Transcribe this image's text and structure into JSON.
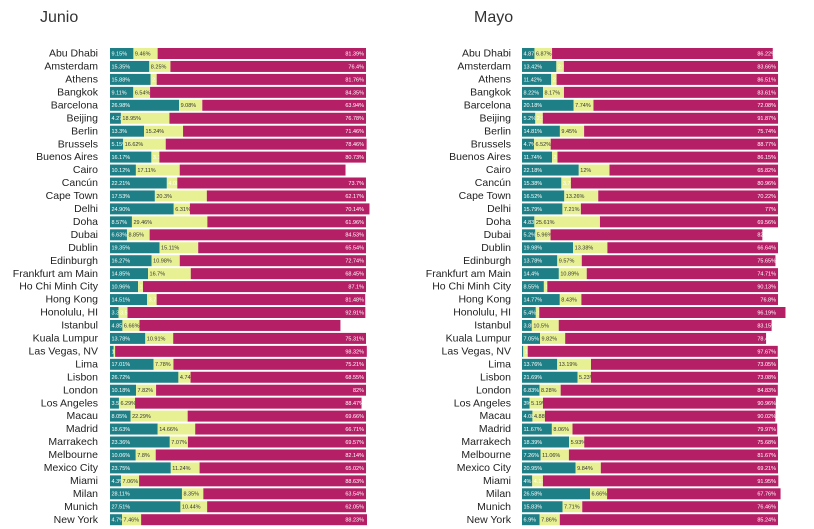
{
  "colors": {
    "teal": "#1f7f86",
    "yellow": "#e8f094",
    "magenta": "#b51f66"
  },
  "chart_data": [
    {
      "type": "bar",
      "orientation": "horizontal",
      "stacked": true,
      "title": "Junio",
      "categories": [
        "Abu Dhabi",
        "Amsterdam",
        "Athens",
        "Bangkok",
        "Barcelona",
        "Beijing",
        "Berlin",
        "Brussels",
        "Buenos Aires",
        "Cairo",
        "Cancún",
        "Cape Town",
        "Delhi",
        "Doha",
        "Dubai",
        "Dublin",
        "Edinburgh",
        "Frankfurt am Main",
        "Ho Chi Minh City",
        "Hong Kong",
        "Honolulu, HI",
        "Istanbul",
        "Kuala Lumpur",
        "Las Vegas, NV",
        "Lima",
        "Lisbon",
        "London",
        "Los Angeles",
        "Macau",
        "Madrid",
        "Marrakech",
        "Melbourne",
        "Mexico City",
        "Miami",
        "Milan",
        "Munich",
        "New York"
      ],
      "series": [
        {
          "values": [
            9.15,
            15.35,
            15.88,
            9.11,
            26.98,
            4.27,
            13.3,
            5.15,
            16.17,
            10.12,
            22.21,
            17.53,
            24.9,
            8.57,
            6.63,
            19.35,
            16.27,
            14.85,
            10.96,
            14.51,
            3.32,
            4.85,
            13.78,
            1.44,
            17.01,
            26.72,
            10.18,
            3.5,
            8.05,
            18.63,
            23.36,
            10.06,
            23.75,
            4.3,
            28.11,
            27.51,
            4.7
          ],
          "labels": [
            "9.15%",
            "15.35%",
            "15.88%",
            "9.11%",
            "26.98%",
            "4.27%",
            "13.3%",
            "5.15%",
            "16.17%",
            "10.12%",
            "22.21%",
            "17.53%",
            "24.90%",
            "8.57%",
            "6.63%",
            "19.35%",
            "16.27%",
            "14.85%",
            "10.96%",
            "14.51%",
            "3.32%",
            "4.85%",
            "13.78%",
            "1.44%",
            "17.01%",
            "26.72%",
            "10.18%",
            "3.5%",
            "8.05%",
            "18.63%",
            "23.36%",
            "10.06%",
            "23.75%",
            "4.3%",
            "28.11%",
            "27.51%",
            "4.7%"
          ]
        },
        {
          "values": [
            9.46,
            8.25,
            2.36,
            6.54,
            9.08,
            18.95,
            15.24,
            16.62,
            3.11,
            17.11,
            4.08,
            20.3,
            6.31,
            29.46,
            8.85,
            15.11,
            10.98,
            16.7,
            1.94,
            3.7,
            3.52,
            6.66,
            10.91,
            0.56,
            7.78,
            4.74,
            7.82,
            6.29,
            22.29,
            14.66,
            7.07,
            7.8,
            11.24,
            7.06,
            8.35,
            10.44,
            7.46
          ],
          "labels": [
            "9.46%",
            "8.25%",
            "2.36%",
            "6.54%",
            "9.08%",
            "18.95%",
            "15.24%",
            "16.62%",
            "3.11%",
            "17.11%",
            "4.08%",
            "20.3%",
            "6.31%",
            "29.46%",
            "8.85%",
            "15.11%",
            "10.98%",
            "16.7%",
            "1.94%",
            "3.7%",
            "3.52%",
            "6.66%",
            "10.91%",
            "0.56%",
            "7.78%",
            "4.74%",
            "7.82%",
            "6.29%",
            "22.29%",
            "14.66%",
            "7.07%",
            "7.8%",
            "11.24%",
            "7.06%",
            "8.35%",
            "10.44%",
            "7.46%"
          ]
        },
        {
          "values": [
            81.39,
            76.4,
            81.76,
            84.35,
            63.94,
            76.78,
            71.46,
            78.46,
            80.73,
            64.77,
            73.7,
            62.17,
            70.14,
            61.96,
            84.53,
            65.54,
            72.74,
            68.45,
            87.1,
            81.48,
            92.91,
            78.5,
            75.31,
            98.32,
            75.21,
            68.55,
            82,
            88.47,
            69.66,
            66.71,
            69.57,
            82.14,
            65.02,
            88.63,
            63.54,
            62.05,
            88.23
          ],
          "labels": [
            "81.39%",
            "76.4%",
            "81.76%",
            "84.35%",
            "63.94%",
            "76.78%",
            "71.46%",
            "78.46%",
            "80.73%",
            "64.77%",
            "73.7%",
            "62.17%",
            "70.14%",
            "61.96%",
            "84.53%",
            "65.54%",
            "72.74%",
            "68.45%",
            "87.1%",
            "81.48%",
            "92.91%",
            "78.5%",
            "75.31%",
            "98.32%",
            "75.21%",
            "68.55%",
            "82%",
            "88.47%",
            "69.66%",
            "66.71%",
            "69.57%",
            "82.14%",
            "65.02%",
            "88.63%",
            "63.54%",
            "62.05%",
            "88.23%"
          ]
        }
      ],
      "xlim": [
        0,
        100
      ]
    },
    {
      "type": "bar",
      "orientation": "horizontal",
      "stacked": true,
      "title": "Mayo",
      "categories": [
        "Abu Dhabi",
        "Amsterdam",
        "Athens",
        "Bangkok",
        "Barcelona",
        "Beijing",
        "Berlin",
        "Brussels",
        "Buenos Aires",
        "Cairo",
        "Cancún",
        "Cape Town",
        "Delhi",
        "Doha",
        "Dubai",
        "Dublin",
        "Edinburgh",
        "Frankfurt am Main",
        "Ho Chi Minh City",
        "Hong Kong",
        "Honolulu, HI",
        "Istanbul",
        "Kuala Lumpur",
        "Las Vegas, NV",
        "Lima",
        "Lisbon",
        "London",
        "Los Angeles",
        "Macau",
        "Madrid",
        "Marrakech",
        "Melbourne",
        "Mexico City",
        "Miami",
        "Milan",
        "Munich",
        "New York"
      ],
      "series": [
        {
          "values": [
            4.87,
            13.42,
            11.42,
            8.22,
            20.18,
            5.2,
            14.81,
            4.7,
            11.74,
            22.18,
            15.38,
            16.52,
            15.79,
            4.83,
            5.2,
            19.98,
            13.78,
            14.4,
            8.55,
            14.77,
            5.4,
            3.85,
            7.05,
            0.5,
            13.76,
            21.69,
            6.83,
            3.0,
            4.08,
            11.67,
            18.39,
            7.26,
            20.95,
            4.0,
            26.58,
            15.83,
            6.9
          ],
          "labels": [
            "4.87%",
            "13.42%",
            "11.42%",
            "8.22%",
            "20.18%",
            "5.2%",
            "14.81%",
            "4.7%",
            "11.74%",
            "22.18%",
            "15.38%",
            "16.52%",
            "15.79%",
            "4.83%",
            "5.2%",
            "19.98%",
            "13.78%",
            "14.4%",
            "8.55%",
            "14.77%",
            "5.4%",
            "3.85%",
            "7.05%",
            "0.5%",
            "13.76%",
            "21.69%",
            "6.83%",
            "3%",
            "4.08%",
            "11.67%",
            "18.39%",
            "7.26%",
            "20.95%",
            "4%",
            "26.58%",
            "15.83%",
            "6.9%"
          ]
        },
        {
          "values": [
            6.87,
            2.92,
            2.08,
            8.17,
            7.74,
            2.93,
            9.45,
            6.52,
            2.11,
            12,
            3.72,
            13.26,
            7.21,
            25.61,
            5.96,
            13.38,
            9.57,
            10.89,
            1.33,
            8.43,
            1.33,
            10.5,
            9.82,
            1.74,
            13.19,
            5.23,
            8.28,
            5.19,
            4.88,
            8.06,
            5.93,
            11.06,
            9.84,
            4.17,
            6.66,
            7.71,
            7.86
          ],
          "labels": [
            "6.87%",
            "2.92%",
            "2.08%",
            "8.17%",
            "7.74%",
            "2.93%",
            "9.45%",
            "6.52%",
            "2.11%",
            "12%",
            "3.72%",
            "13.26%",
            "7.21%",
            "25.61%",
            "5.96%",
            "13.38%",
            "9.57%",
            "10.89%",
            "1.33%",
            "8.43%",
            "1.33%",
            "10.5%",
            "9.82%",
            "1.74%",
            "13.19%",
            "5.23%",
            "8.28%",
            "5.19%",
            "4.88%",
            "8.06%",
            "5.93%",
            "11.06%",
            "9.84%",
            "4.17%",
            "6.66%",
            "7.71%",
            "7.86%"
          ]
        },
        {
          "values": [
            86.22,
            83.66,
            86.51,
            83.61,
            72.08,
            91.87,
            75.74,
            88.77,
            86.15,
            65.82,
            80.96,
            70.22,
            77,
            69.56,
            82.72,
            66.64,
            75.65,
            74.71,
            90.13,
            76.8,
            96.19,
            83.15,
            78.47,
            97.67,
            73.05,
            73.08,
            84.83,
            90.96,
            90.02,
            79.97,
            75.68,
            81.67,
            69.21,
            91.95,
            67.76,
            76.46,
            85.24
          ],
          "labels": [
            "86.22%",
            "83.66%",
            "86.51%",
            "83.61%",
            "72.08%",
            "91.87%",
            "75.74%",
            "88.77%",
            "86.15%",
            "65.82%",
            "80.96%",
            "70.22%",
            "77%",
            "69.56%",
            "82.72%",
            "66.64%",
            "75.65%",
            "74.71%",
            "90.13%",
            "76.8%",
            "96.19%",
            "83.15%",
            "78.47%",
            "97.67%",
            "73.05%",
            "73.08%",
            "84.83%",
            "90.96%",
            "90.02%",
            "79.97%",
            "75.68%",
            "81.67%",
            "69.21%",
            "91.95%",
            "67.76%",
            "76.46%",
            "85.24%"
          ]
        }
      ],
      "xlim": [
        0,
        100
      ]
    }
  ]
}
